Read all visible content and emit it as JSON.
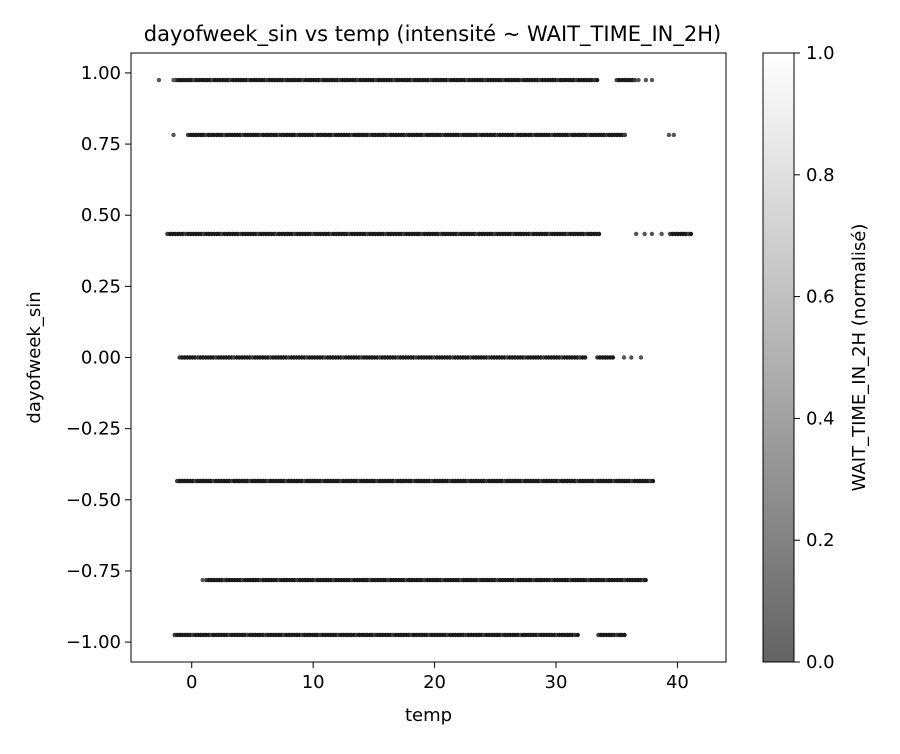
{
  "chart_data": {
    "type": "scatter",
    "title": "dayofweek_sin vs temp (intensité ~ WAIT_TIME_IN_2H)",
    "xlabel": "temp",
    "ylabel": "dayofweek_sin",
    "xlim": [
      -5,
      44
    ],
    "ylim": [
      -1.07,
      1.07
    ],
    "xticks": [
      0,
      10,
      20,
      30,
      40
    ],
    "xtick_labels": [
      "0",
      "10",
      "20",
      "30",
      "40"
    ],
    "yticks": [
      1.0,
      0.75,
      0.5,
      0.25,
      0.0,
      -0.25,
      -0.5,
      -0.75,
      -1.0
    ],
    "ytick_labels": [
      "1.00",
      "0.75",
      "0.50",
      "0.25",
      "0.00",
      "−0.25",
      "−0.50",
      "−0.75",
      "−1.00"
    ],
    "grid": false,
    "colorbar": {
      "label": "WAIT_TIME_IN_2H (normalisé)",
      "range": [
        0,
        1
      ],
      "ticks": [
        0.0,
        0.2,
        0.4,
        0.6,
        0.8,
        1.0
      ],
      "tick_labels": [
        "0.0",
        "0.2",
        "0.4",
        "0.6",
        "0.8",
        "1.0"
      ],
      "color_low": "#636363",
      "color_high": "#ffffff"
    },
    "point_color": "#1a1a1a",
    "series": [
      {
        "y": 0.975,
        "segments": [
          [
            -1.3,
            33.5
          ],
          [
            35.0,
            36.5
          ]
        ],
        "points": [
          -2.7,
          -1.5,
          36.8,
          37.4,
          37.9
        ]
      },
      {
        "y": 0.782,
        "segments": [
          [
            -0.3,
            35.8
          ]
        ],
        "points": [
          -1.5,
          39.3,
          39.7
        ]
      },
      {
        "y": 0.434,
        "segments": [
          [
            -2.0,
            33.7
          ],
          [
            39.4,
            41.2
          ]
        ],
        "points": [
          36.6,
          37.3,
          37.9,
          38.7
        ]
      },
      {
        "y": 0.0,
        "segments": [
          [
            -1.0,
            32.5
          ],
          [
            33.4,
            34.7
          ]
        ],
        "points": [
          35.6,
          36.2,
          37.0
        ]
      },
      {
        "y": -0.434,
        "segments": [
          [
            -1.2,
            38.0
          ]
        ],
        "points": []
      },
      {
        "y": -0.782,
        "segments": [
          [
            1.2,
            37.5
          ]
        ],
        "points": [
          0.9
        ]
      },
      {
        "y": -0.975,
        "segments": [
          [
            -1.4,
            32.0
          ],
          [
            33.5,
            35.7
          ]
        ],
        "points": []
      }
    ]
  }
}
